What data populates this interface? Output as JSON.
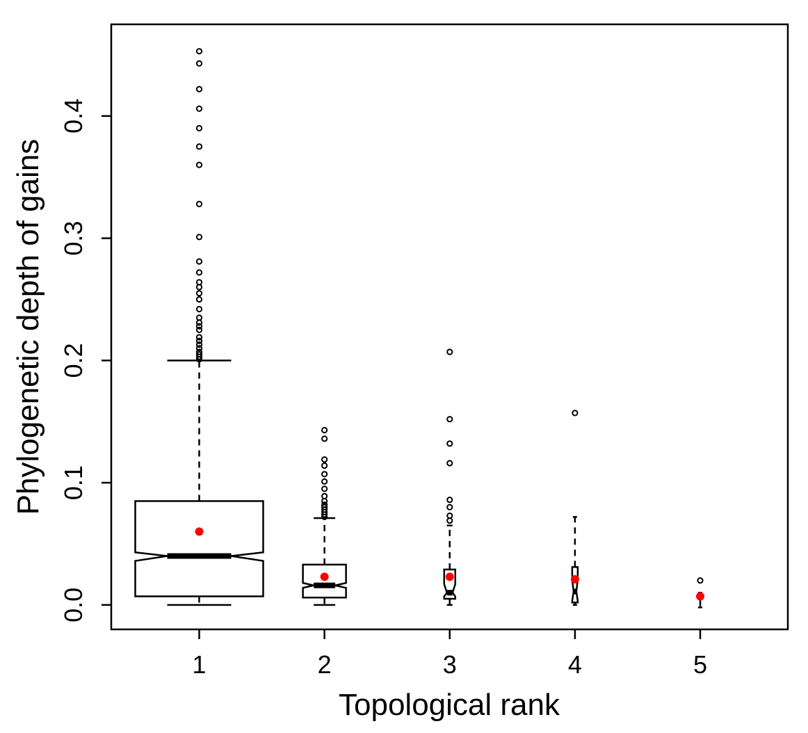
{
  "chart_data": {
    "type": "boxplot",
    "xlabel": "Topological rank",
    "ylabel": "Phylogenetic depth of gains",
    "categories": [
      "1",
      "2",
      "3",
      "4",
      "5"
    ],
    "ylim": [
      -0.02,
      0.475
    ],
    "yticks": [
      0.0,
      0.1,
      0.2,
      0.3,
      0.4
    ],
    "ytick_labels": [
      "0.0",
      "0.1",
      "0.2",
      "0.3",
      "0.4"
    ],
    "grid": false,
    "notched": true,
    "mean_marker_color": "#ff0000",
    "boxes": [
      {
        "category": "1",
        "whisker_low": 0.0,
        "q1": 0.007,
        "median": 0.04,
        "q3": 0.085,
        "whisker_high": 0.2,
        "notch_low": 0.036,
        "notch_high": 0.043,
        "mean": 0.06,
        "outliers": [
          0.453,
          0.443,
          0.422,
          0.406,
          0.39,
          0.375,
          0.36,
          0.328,
          0.301,
          0.281,
          0.272,
          0.264,
          0.26,
          0.255,
          0.25,
          0.242,
          0.235,
          0.231,
          0.228,
          0.225,
          0.219,
          0.216,
          0.213,
          0.21,
          0.207,
          0.205,
          0.203,
          0.201
        ]
      },
      {
        "category": "2",
        "whisker_low": 0.0,
        "q1": 0.006,
        "median": 0.016,
        "q3": 0.033,
        "whisker_high": 0.071,
        "notch_low": 0.014,
        "notch_high": 0.018,
        "mean": 0.023,
        "outliers": [
          0.143,
          0.136,
          0.119,
          0.114,
          0.107,
          0.101,
          0.095,
          0.089,
          0.085,
          0.082,
          0.08,
          0.078,
          0.076,
          0.074,
          0.072
        ]
      },
      {
        "category": "3",
        "whisker_low": 0.0,
        "q1": 0.005,
        "median": 0.01,
        "q3": 0.029,
        "whisker_high": 0.065,
        "notch_low": 0.007,
        "notch_high": 0.017,
        "mean": 0.023,
        "outliers": [
          0.207,
          0.152,
          0.132,
          0.116,
          0.086,
          0.08,
          0.073,
          0.069
        ]
      },
      {
        "category": "4",
        "whisker_low": 0.0,
        "q1": 0.002,
        "median": 0.011,
        "q3": 0.031,
        "whisker_high": 0.072,
        "notch_low": 0.003,
        "notch_high": 0.021,
        "mean": 0.021,
        "outliers": [
          0.157
        ]
      },
      {
        "category": "5",
        "whisker_low": -0.002,
        "q1": 0.004,
        "median": 0.006,
        "q3": 0.008,
        "whisker_high": 0.01,
        "notch_low": 0.006,
        "notch_high": 0.006,
        "mean": 0.007,
        "outliers": [
          0.02
        ]
      }
    ]
  }
}
